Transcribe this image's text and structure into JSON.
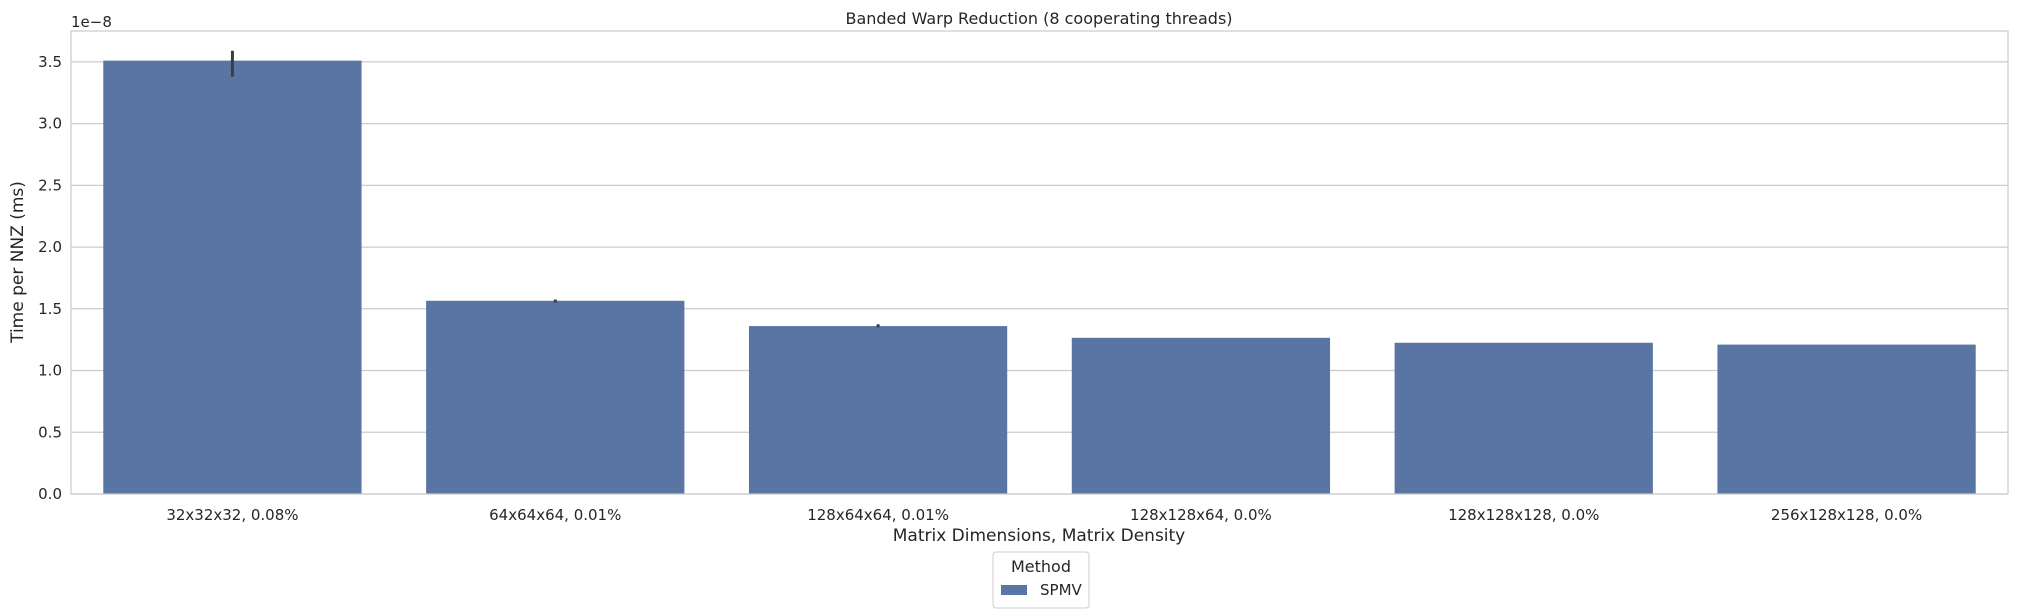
{
  "chart_data": {
    "type": "bar",
    "title": "Banded Warp Reduction (8 cooperating threads)",
    "xlabel": "Matrix Dimensions, Matrix Density",
    "ylabel": "Time per NNZ (ms)",
    "y_offset_label": "1e−8",
    "y_scale": 1e-08,
    "ylim": [
      0,
      3.75
    ],
    "yticks": [
      "0.0",
      "0.5",
      "1.0",
      "1.5",
      "2.0",
      "2.5",
      "3.0",
      "3.5"
    ],
    "grid": true,
    "categories": [
      "32x32x32, 0.08%",
      "64x64x64, 0.01%",
      "128x64x64, 0.01%",
      "128x128x64, 0.0%",
      "128x128x128, 0.0%",
      "256x128x128, 0.0%"
    ],
    "series": [
      {
        "name": "SPMV",
        "color": "#5875a4",
        "values": [
          3.51,
          1.565,
          1.36,
          1.265,
          1.225,
          1.21
        ],
        "error_low": [
          3.38,
          1.55,
          1.35,
          1.265,
          1.225,
          1.21
        ],
        "error_high": [
          3.59,
          1.575,
          1.375,
          1.265,
          1.225,
          1.21
        ]
      }
    ],
    "legend": {
      "title": "Method",
      "position": "bottom-center"
    }
  }
}
